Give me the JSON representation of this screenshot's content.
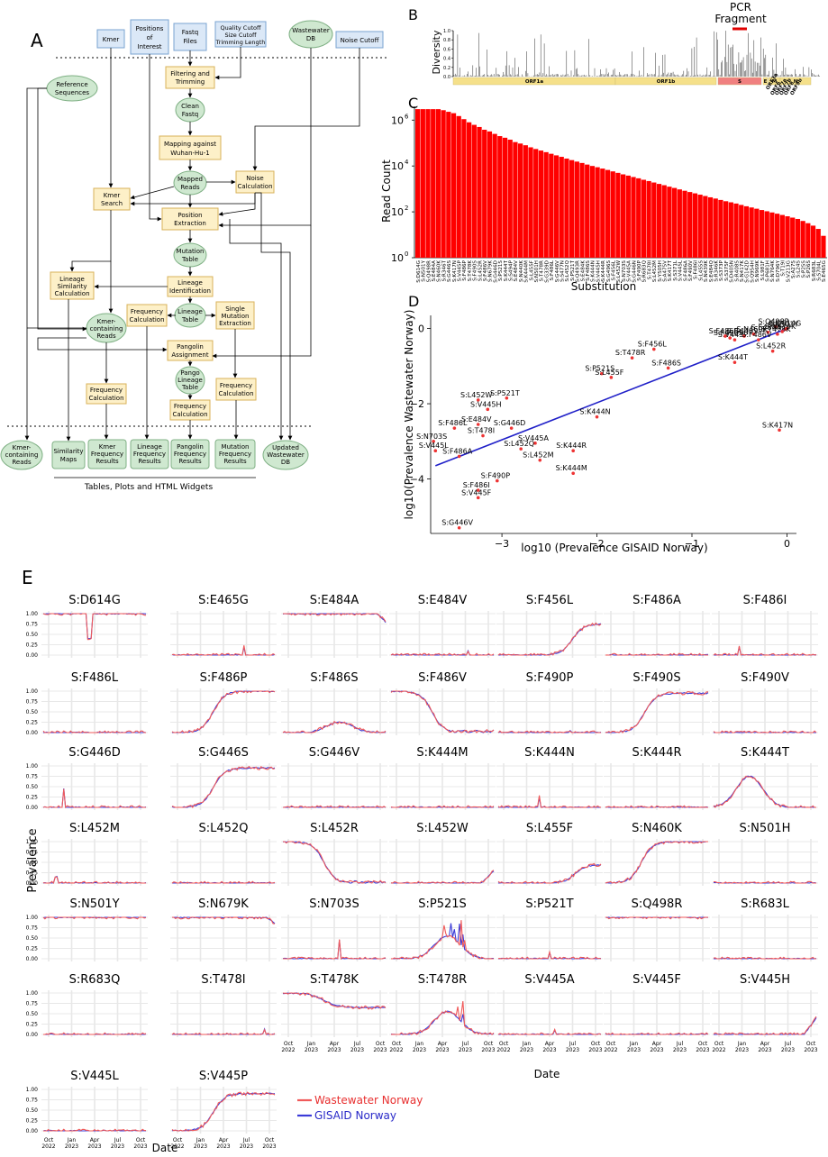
{
  "panel_labels": {
    "a": "A",
    "b": "B",
    "c": "C",
    "d": "D",
    "e": "E"
  },
  "flowchart": {
    "inputs": {
      "kmer": "Kmer",
      "positions": [
        "Positions",
        "of",
        "Interest"
      ],
      "fastq": [
        "Fastq",
        "Files"
      ],
      "quality": [
        "Quality Cutoff",
        "Size Cutoff",
        "Trimming Length"
      ],
      "wastewater_db": [
        "Wastewater",
        "DB"
      ],
      "noise_cutoff": "Noise Cutoff",
      "reference": [
        "Reference",
        "Sequences"
      ]
    },
    "process": {
      "filtering": [
        "Filtering and",
        "Trimming"
      ],
      "clean": [
        "Clean",
        "Fastq"
      ],
      "mapping": [
        "Mapping against",
        "Wuhan-Hu-1"
      ],
      "mapped": [
        "Mapped",
        "Reads"
      ],
      "noise_calc": [
        "Noise",
        "Calculation"
      ],
      "kmer_search": [
        "Kmer",
        "Search"
      ],
      "position_extraction": [
        "Position",
        "Extraction"
      ],
      "mutation_table": [
        "Mutation",
        "Table"
      ],
      "lineage_identification": [
        "Lineage",
        "Identification"
      ],
      "lineage_similarity": [
        "Lineage",
        "Similarity",
        "Calculation"
      ],
      "lineage_table": [
        "Lineage",
        "Table"
      ],
      "frequency_calc": [
        "Frequency",
        "Calculation"
      ],
      "single_mutation": [
        "Single",
        "Mutation",
        "Extraction"
      ],
      "kmer_containing": [
        "Kmer-",
        "containing",
        "Reads"
      ],
      "pangolin": [
        "Pangolin",
        "Assignment"
      ],
      "pango_table": [
        "Pango",
        "Lineage",
        "Table"
      ]
    },
    "outputs": {
      "kmer_reads": [
        "Kmer-",
        "containing",
        "Reads"
      ],
      "similarity_maps": [
        "Similarity",
        "Maps"
      ],
      "kmer_freq": [
        "Kmer",
        "Frequency",
        "Results"
      ],
      "lineage_freq": [
        "Lineage",
        "Frequency",
        "Results"
      ],
      "pangolin_freq": [
        "Pangolin",
        "Frequency",
        "Results"
      ],
      "mutation_freq": [
        "Mutation",
        "Frequency",
        "Results"
      ],
      "updated_db": [
        "Updated",
        "Wastewater",
        "DB"
      ]
    },
    "caption": "Tables, Plots and HTML Widgets"
  },
  "colors": {
    "input_fill": "#dbe8f7",
    "input_stroke": "#7aa3d0",
    "process_fill": "#fdf0c8",
    "process_stroke": "#d8b25a",
    "data_fill": "#cfe8d0",
    "data_stroke": "#7fb084",
    "output_fill": "#cfe8d0",
    "output_stroke": "#7fb084",
    "bar_red": "#ff0000",
    "wastewater": "#f05a5a",
    "gisaid": "#3b3bd8",
    "trend": "#2020c8",
    "grid": "#e8e8e8"
  },
  "chart_data": [
    {
      "type": "line",
      "id": "B",
      "title": "",
      "ylabel": "Diversity",
      "yticks": [
        "0.0",
        "0.2",
        "0.4",
        "0.6",
        "0.8",
        "1.0"
      ],
      "annotation": [
        "PCR",
        "Fragment"
      ],
      "genes": [
        {
          "name": "ORF1a",
          "color": "#f5e08a"
        },
        {
          "name": "ORF1b",
          "color": "#f5e08a"
        },
        {
          "name": "S",
          "color": "#f08080"
        },
        {
          "name": "E",
          "color": "#f5e08a"
        },
        {
          "name": "M",
          "color": "#f5e08a"
        },
        {
          "name": "N",
          "color": "#f5e08a"
        },
        {
          "name": "ORF3a",
          "color": "#f5e08a"
        },
        {
          "name": "ORF6",
          "color": "#f5e08a"
        },
        {
          "name": "ORF7a",
          "color": "#f5e08a"
        },
        {
          "name": "ORF7b",
          "color": "#f5e08a"
        },
        {
          "name": "ORF8",
          "color": "#f5e08a"
        },
        {
          "name": "ORF9b",
          "color": "#f5e08a"
        }
      ]
    },
    {
      "type": "bar",
      "id": "C",
      "xlabel": "Substitution",
      "ylabel": "Read Count",
      "yscale": "log",
      "yticks": [
        "10",
        "10",
        "10",
        "10"
      ],
      "ytick_exps": [
        "0",
        "2",
        "4",
        "6"
      ],
      "categories": [
        "S:D614G",
        "S:N501Y",
        "S:Q498R",
        "S:E484A",
        "S:N460K",
        "S:R346T",
        "S:G446S",
        "S:K417N",
        "S:V445P",
        "S:F486P",
        "S:T478K",
        "S:F490S",
        "S:L452R",
        "S:F486V",
        "S:N679K",
        "S:G446D",
        "S:P521S",
        "S:K444T",
        "S:S494P",
        "S:E484V",
        "S:N440K",
        "S:K444M",
        "S:L455F",
        "S:N501H",
        "S:T478R",
        "S:G339D",
        "S:F486L",
        "S:G446V",
        "S:S477N",
        "S:L452Q",
        "S:P521T",
        "S:Q493R",
        "S:E484K",
        "S:F486S",
        "S:K444N",
        "S:V445H",
        "S:K444R",
        "S:G496S",
        "S:F456L",
        "S:L452W",
        "S:N703S",
        "S:V445A",
        "S:G446N",
        "S:F490P",
        "S:R683Q",
        "S:T478I",
        "S:L452M",
        "S:Y505H",
        "S:A475V",
        "S:K417T",
        "S:S371L",
        "S:V445L",
        "S:F486A",
        "S:F490V",
        "S:F486I",
        "S:L455S",
        "S:N439K",
        "S:E484Q",
        "S:R346K",
        "S:S373P",
        "S:S375F",
        "S:D405N",
        "S:R408S",
        "S:N417K",
        "S:G142D",
        "S:Q954H",
        "S:N969K",
        "S:L981F",
        "S:P681H",
        "S:N764K",
        "S:D796Y",
        "S:T19I",
        "S:V213G",
        "S:A27S",
        "S:L24S",
        "S:P25S",
        "S:P26S",
        "S:R683L",
        "S:S704L",
        "S:E465G"
      ],
      "values": [
        3000000,
        3000000,
        3000000,
        3000000,
        3000000,
        2700000,
        2300000,
        2000000,
        1500000,
        1100000,
        800000,
        620000,
        500000,
        380000,
        320000,
        250000,
        200000,
        170000,
        140000,
        110000,
        95000,
        80000,
        65000,
        55000,
        47000,
        40000,
        34000,
        29000,
        25000,
        21000,
        18000,
        15500,
        13500,
        11500,
        10000,
        8800,
        7700,
        6700,
        5800,
        5000,
        4300,
        3800,
        3300,
        2900,
        2500,
        2200,
        1900,
        1650,
        1450,
        1250,
        1100,
        950,
        830,
        730,
        640,
        560,
        490,
        430,
        380,
        330,
        290,
        260,
        230,
        200,
        175,
        155,
        137,
        120,
        106,
        94,
        83,
        73,
        64,
        56,
        49,
        40,
        32,
        25,
        18,
        9
      ]
    },
    {
      "type": "scatter",
      "id": "D",
      "xlabel": "log10 (Prevalence GISAID Norway)",
      "ylabel": "log10(Prevalence Wastewater Norway)",
      "xlim": [
        -3.75,
        0.1
      ],
      "ylim": [
        -5.45,
        0.35
      ],
      "xticks": [
        -3,
        -2,
        -1,
        0
      ],
      "yticks": [
        0,
        -2,
        -4
      ],
      "trend": {
        "x0": -3.7,
        "y0": -3.65,
        "x1": 0,
        "y1": 0
      },
      "points": [
        {
          "label": "S:Q498R",
          "x": -0.12,
          "y": 0.05
        },
        {
          "label": "S:D614G",
          "x": 0,
          "y": 0
        },
        {
          "label": "S:N501Y",
          "x": -0.02,
          "y": -0.02
        },
        {
          "label": "S:T478K",
          "x": -0.1,
          "y": -0.15
        },
        {
          "label": "S:N679K",
          "x": -0.05,
          "y": -0.08
        },
        {
          "label": "S:V445P",
          "x": -0.55,
          "y": -0.3
        },
        {
          "label": "S:G446S",
          "x": -0.45,
          "y": -0.2
        },
        {
          "label": "S:E484A",
          "x": -0.2,
          "y": -0.1
        },
        {
          "label": "S:F486P",
          "x": -0.65,
          "y": -0.2
        },
        {
          "label": "S:F490S",
          "x": -0.6,
          "y": -0.25
        },
        {
          "label": "S:N460K",
          "x": -0.35,
          "y": -0.15
        },
        {
          "label": "S:L452R",
          "x": -0.15,
          "y": -0.6
        },
        {
          "label": "S:F486V",
          "x": -0.3,
          "y": -0.3
        },
        {
          "label": "S:K444T",
          "x": -0.55,
          "y": -0.9
        },
        {
          "label": "S:F456L",
          "x": -1.4,
          "y": -0.55
        },
        {
          "label": "S:T478R",
          "x": -1.63,
          "y": -0.78
        },
        {
          "label": "S:F486S",
          "x": -1.25,
          "y": -1.05
        },
        {
          "label": "S:P521S",
          "x": -1.95,
          "y": -1.2
        },
        {
          "label": "S:L455F",
          "x": -1.85,
          "y": -1.3
        },
        {
          "label": "S:K417N",
          "x": -0.08,
          "y": -2.7
        },
        {
          "label": "S:L452W",
          "x": -3.25,
          "y": -1.9
        },
        {
          "label": "S:P521T",
          "x": -2.95,
          "y": -1.85
        },
        {
          "label": "S:V445H",
          "x": -3.15,
          "y": -2.15
        },
        {
          "label": "S:K444N",
          "x": -2.0,
          "y": -2.35
        },
        {
          "label": "S:E484V",
          "x": -3.25,
          "y": -2.55
        },
        {
          "label": "S:F486L",
          "x": -3.5,
          "y": -2.65
        },
        {
          "label": "S:G446D",
          "x": -2.9,
          "y": -2.65
        },
        {
          "label": "S:T478I",
          "x": -3.2,
          "y": -2.85
        },
        {
          "label": "S:V445A",
          "x": -2.65,
          "y": -3.05
        },
        {
          "label": "S:N703S",
          "x": -3.72,
          "y": -3.0
        },
        {
          "label": "S:V445L",
          "x": -3.7,
          "y": -3.25
        },
        {
          "label": "S:K444R",
          "x": -2.25,
          "y": -3.25
        },
        {
          "label": "S:L452Q",
          "x": -2.8,
          "y": -3.2
        },
        {
          "label": "S:F486A",
          "x": -3.45,
          "y": -3.4
        },
        {
          "label": "S:L452M",
          "x": -2.6,
          "y": -3.5
        },
        {
          "label": "S:F490P",
          "x": -3.05,
          "y": -4.05
        },
        {
          "label": "S:K444M",
          "x": -2.25,
          "y": -3.85
        },
        {
          "label": "S:F486I",
          "x": -3.25,
          "y": -4.3
        },
        {
          "label": "S:V445F",
          "x": -3.25,
          "y": -4.5
        },
        {
          "label": "S:G446V",
          "x": -3.45,
          "y": -5.3
        }
      ]
    },
    {
      "type": "line",
      "id": "E",
      "xlabel": "Date",
      "ylabel": "Prevalence",
      "yticks": [
        "0.00",
        "0.25",
        "0.50",
        "0.75",
        "1.00"
      ],
      "xticks": [
        [
          "Oct",
          "2022"
        ],
        [
          "Jan",
          "2023"
        ],
        [
          "Apr",
          "2023"
        ],
        [
          "Jul",
          "2023"
        ],
        [
          "Oct",
          "2023"
        ]
      ],
      "legend_position": "bottom",
      "series_names": [
        "Wastewater Norway",
        "GISAID Norway"
      ],
      "panels": [
        {
          "title": "S:D614G",
          "p": "one",
          "dip": 0.45
        },
        {
          "title": "S:E465G",
          "p": "zero",
          "spike": [
            0.7,
            0.2
          ]
        },
        {
          "title": "S:E484A",
          "p": "one",
          "tail": 0.8
        },
        {
          "title": "S:E484V",
          "p": "zero",
          "spike": [
            0.75,
            0.1
          ]
        },
        {
          "title": "S:F456L",
          "p": "rise",
          "start": 0.62,
          "end": 0.75
        },
        {
          "title": "S:F486A",
          "p": "zero"
        },
        {
          "title": "S:F486I",
          "p": "zero",
          "spike": [
            0.25,
            0.2
          ]
        },
        {
          "title": "S:F486L",
          "p": "zero"
        },
        {
          "title": "S:F486P",
          "p": "rise",
          "start": 0.3,
          "end": 1.0
        },
        {
          "title": "S:F486S",
          "p": "hump",
          "peak": 0.25
        },
        {
          "title": "S:F486V",
          "p": "fall",
          "start": 0.35
        },
        {
          "title": "S:F490P",
          "p": "zero",
          "spike": [
            0.7,
            0.05
          ]
        },
        {
          "title": "S:F490S",
          "p": "rise",
          "start": 0.28,
          "end": 0.95
        },
        {
          "title": "S:F490V",
          "p": "zero"
        },
        {
          "title": "S:G446D",
          "p": "zero",
          "spike": [
            0.2,
            0.45
          ]
        },
        {
          "title": "S:G446S",
          "p": "rise",
          "start": 0.3,
          "end": 0.95
        },
        {
          "title": "S:G446V",
          "p": "zero"
        },
        {
          "title": "S:K444M",
          "p": "zero"
        },
        {
          "title": "S:K444N",
          "p": "zero",
          "spike": [
            0.4,
            0.25
          ]
        },
        {
          "title": "S:K444R",
          "p": "zero"
        },
        {
          "title": "S:K444T",
          "p": "hump",
          "peak": 0.75
        },
        {
          "title": "S:L452M",
          "p": "zero",
          "spike": [
            0.12,
            0.15
          ]
        },
        {
          "title": "S:L452Q",
          "p": "zero"
        },
        {
          "title": "S:L452R",
          "p": "fall",
          "start": 0.35
        },
        {
          "title": "S:L452W",
          "p": "zero",
          "late": 0.3
        },
        {
          "title": "S:L455F",
          "p": "rise",
          "start": 0.65,
          "end": 0.45
        },
        {
          "title": "S:N460K",
          "p": "rise",
          "start": 0.25,
          "end": 1.0
        },
        {
          "title": "S:N501H",
          "p": "zero"
        },
        {
          "title": "S:N501Y",
          "p": "one"
        },
        {
          "title": "S:N679K",
          "p": "one",
          "tail": 0.85
        },
        {
          "title": "S:N703S",
          "p": "zero",
          "spike": [
            0.55,
            0.45
          ]
        },
        {
          "title": "S:P521S",
          "p": "hump",
          "peak": 0.55,
          "spikes": true
        },
        {
          "title": "S:P521T",
          "p": "zero",
          "spike": [
            0.5,
            0.15
          ]
        },
        {
          "title": "S:Q498R",
          "p": "one"
        },
        {
          "title": "S:R683L",
          "p": "zero"
        },
        {
          "title": "S:R683Q",
          "p": "zero"
        },
        {
          "title": "S:T478I",
          "p": "zero",
          "spike": [
            0.9,
            0.12
          ]
        },
        {
          "title": "S:T478K",
          "p": "fall_partial",
          "start": 0.35
        },
        {
          "title": "S:T478R",
          "p": "hump",
          "peak": 0.55,
          "spikes": true
        },
        {
          "title": "S:V445A",
          "p": "zero",
          "spike": [
            0.55,
            0.1
          ]
        },
        {
          "title": "S:V445F",
          "p": "zero"
        },
        {
          "title": "S:V445H",
          "p": "zero",
          "late": 0.4
        },
        {
          "title": "S:V445L",
          "p": "zero"
        },
        {
          "title": "S:V445P",
          "p": "rise",
          "start": 0.3,
          "end": 0.9
        }
      ]
    }
  ]
}
